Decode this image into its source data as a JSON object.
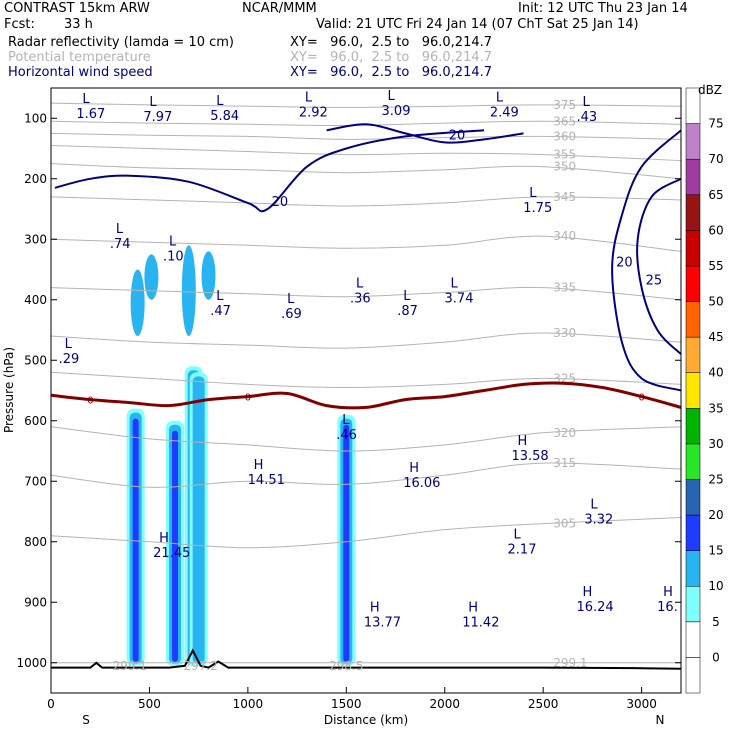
{
  "header": {
    "model": "CONTRAST 15km ARW",
    "org": "NCAR/MMM",
    "init": "Init: 12 UTC Thu 23 Jan 14",
    "fcst_label": "Fcst:",
    "fcst_value": "33 h",
    "valid": "Valid: 21 UTC Fri 24 Jan 14 (07 ChT Sat 25 Jan 14)",
    "fields": [
      {
        "name": "Radar reflectivity (lamda = 10 cm)",
        "xy": "XY=   96.0,  2.5 to   96.0,214.7"
      },
      {
        "name": "Potential temperature",
        "xy": "XY=   96.0,  2.5 to   96.0,214.7"
      },
      {
        "name": "Horizontal wind speed",
        "xy": "XY=   96.0,  2.5 to   96.0,214.7"
      }
    ]
  },
  "colors": {
    "theta": "#b4b4b4",
    "wind": "#000080",
    "freezing": "#800000",
    "terrain": "#000000"
  },
  "chart_data": {
    "type": "cross-section",
    "xlabel": "Distance (km)",
    "ylabel": "Pressure (hPa)",
    "xlim": [
      0,
      3200
    ],
    "ylim": [
      1050,
      50
    ],
    "x_ticks": [
      0,
      500,
      1000,
      1500,
      2000,
      2500,
      3000
    ],
    "y_ticks": [
      100,
      200,
      300,
      400,
      500,
      600,
      700,
      800,
      900,
      1000
    ],
    "ends": {
      "left": "S",
      "right": "N"
    },
    "colorbar": {
      "unit": "dBZ",
      "levels": [
        0,
        5,
        10,
        15,
        20,
        25,
        30,
        35,
        40,
        45,
        50,
        55,
        60,
        65,
        70,
        75
      ],
      "colors": [
        "#ffffff",
        "#ffffff",
        "#80ffff",
        "#28b4f0",
        "#1e3cff",
        "#2864b4",
        "#28e628",
        "#00b400",
        "#ffe600",
        "#ffaa32",
        "#ff6400",
        "#ff0000",
        "#c80000",
        "#961414",
        "#a03ca0",
        "#be82c8",
        "#ffffff"
      ]
    },
    "reflectivity_columns": [
      {
        "x": 430,
        "p_top": 580,
        "p_bot": 1005,
        "dbz": 15
      },
      {
        "x": 630,
        "p_top": 600,
        "p_bot": 1005,
        "dbz": 15
      },
      {
        "x": 725,
        "p_top": 510,
        "p_bot": 1005,
        "dbz": 20
      },
      {
        "x": 750,
        "p_top": 520,
        "p_bot": 1005,
        "dbz": 10
      },
      {
        "x": 1500,
        "p_top": 590,
        "p_bot": 1005,
        "dbz": 15
      }
    ],
    "reflectivity_blobs": [
      {
        "x": 440,
        "p_top": 350,
        "p_bot": 460,
        "dbz": 10
      },
      {
        "x": 510,
        "p_top": 325,
        "p_bot": 400,
        "dbz": 10
      },
      {
        "x": 700,
        "p_top": 310,
        "p_bot": 460,
        "dbz": 10
      },
      {
        "x": 800,
        "p_top": 320,
        "p_bot": 400,
        "dbz": 10
      }
    ],
    "freezing_level": {
      "label": "0",
      "x": [
        0,
        200,
        400,
        600,
        800,
        1000,
        1200,
        1400,
        1600,
        1800,
        2000,
        2200,
        2400,
        2600,
        2800,
        3000,
        3200
      ],
      "p": [
        558,
        565,
        570,
        575,
        565,
        560,
        555,
        575,
        578,
        565,
        560,
        550,
        540,
        538,
        545,
        560,
        578
      ]
    },
    "theta_contours": [
      {
        "label": "375",
        "p": [
          75,
          78,
          80,
          82,
          80,
          78,
          80
        ]
      },
      {
        "label": "365",
        "p": [
          105,
          108,
          110,
          112,
          108,
          105,
          110
        ]
      },
      {
        "label": "360",
        "p": [
          125,
          128,
          130,
          135,
          132,
          130,
          135
        ]
      },
      {
        "label": "355",
        "p": [
          145,
          150,
          155,
          160,
          158,
          160,
          170
        ]
      },
      {
        "label": "350",
        "p": [
          175,
          182,
          185,
          190,
          185,
          180,
          200
        ]
      },
      {
        "label": "345",
        "p": [
          230,
          235,
          240,
          245,
          240,
          230,
          235
        ]
      },
      {
        "label": "340",
        "p": [
          300,
          305,
          310,
          315,
          310,
          295,
          320
        ]
      },
      {
        "label": "335",
        "p": [
          380,
          385,
          390,
          395,
          388,
          380,
          400
        ]
      },
      {
        "label": "330",
        "p": [
          460,
          470,
          475,
          480,
          470,
          455,
          470
        ]
      },
      {
        "label": "325",
        "p": [
          520,
          530,
          540,
          545,
          540,
          530,
          540
        ]
      },
      {
        "label": "320",
        "p": [
          610,
          630,
          640,
          650,
          640,
          620,
          610
        ]
      },
      {
        "label": "315",
        "p": [
          690,
          710,
          700,
          705,
          690,
          670,
          680
        ]
      },
      {
        "label": "305",
        "p": [
          790,
          800,
          810,
          800,
          780,
          770,
          760
        ]
      },
      {
        "label": "299.1",
        "p": [
          1000,
          1000,
          1000,
          1000,
          1000,
          1000,
          1000
        ]
      }
    ],
    "theta_x": [
      0,
      500,
      1000,
      1500,
      2000,
      2500,
      3200
    ],
    "wind_contours": [
      {
        "label": "20",
        "x": [
          20,
          200,
          400,
          700,
          1000,
          1100,
          1300,
          1500,
          1800,
          2200
        ],
        "p": [
          215,
          200,
          195,
          205,
          240,
          250,
          180,
          150,
          130,
          120
        ]
      },
      {
        "label": "20",
        "x": [
          1400,
          1600,
          1800,
          2000,
          2200,
          2400
        ],
        "p": [
          120,
          110,
          125,
          140,
          135,
          125
        ]
      },
      {
        "label": "25",
        "x": [
          3200,
          3050,
          2980,
          3000,
          3080,
          3200
        ],
        "p": [
          200,
          230,
          300,
          380,
          450,
          490
        ]
      },
      {
        "label": "20",
        "x": [
          3200,
          3000,
          2900,
          2850,
          2900,
          3000,
          3200
        ],
        "p": [
          120,
          180,
          260,
          350,
          470,
          530,
          550
        ]
      }
    ],
    "extrema": [
      {
        "kind": "L",
        "value": "1.67",
        "x": 200,
        "p": 75
      },
      {
        "kind": "L",
        "value": "7.97",
        "x": 540,
        "p": 80
      },
      {
        "kind": "L",
        "value": "5.84",
        "x": 880,
        "p": 78
      },
      {
        "kind": "L",
        "value": "2.92",
        "x": 1330,
        "p": 72
      },
      {
        "kind": "L",
        "value": "3.09",
        "x": 1750,
        "p": 70
      },
      {
        "kind": "L",
        "value": "2.49",
        "x": 2300,
        "p": 72
      },
      {
        "kind": "L",
        "value": ".43",
        "x": 2740,
        "p": 80
      },
      {
        "kind": "L",
        "value": "1.75",
        "x": 2470,
        "p": 230
      },
      {
        "kind": "L",
        "value": ".74",
        "x": 370,
        "p": 290
      },
      {
        "kind": "L",
        "value": ".10",
        "x": 640,
        "p": 310
      },
      {
        "kind": "L",
        "value": ".47",
        "x": 880,
        "p": 400
      },
      {
        "kind": "L",
        "value": ".69",
        "x": 1240,
        "p": 405
      },
      {
        "kind": "L",
        "value": ".36",
        "x": 1590,
        "p": 380
      },
      {
        "kind": "L",
        "value": ".87",
        "x": 1830,
        "p": 400
      },
      {
        "kind": "L",
        "value": "3.74",
        "x": 2070,
        "p": 380
      },
      {
        "kind": "L",
        "value": ".29",
        "x": 110,
        "p": 480
      },
      {
        "kind": "L",
        "value": ".46",
        "x": 1520,
        "p": 605
      },
      {
        "kind": "H",
        "value": "13.58",
        "x": 2410,
        "p": 640
      },
      {
        "kind": "H",
        "value": "14.51",
        "x": 1070,
        "p": 680
      },
      {
        "kind": "H",
        "value": "16.06",
        "x": 1860,
        "p": 685
      },
      {
        "kind": "L",
        "value": "3.32",
        "x": 2780,
        "p": 745
      },
      {
        "kind": "L",
        "value": "2.17",
        "x": 2390,
        "p": 795
      },
      {
        "kind": "H",
        "value": "21.45",
        "x": 590,
        "p": 800
      },
      {
        "kind": "H",
        "value": "16.24",
        "x": 2740,
        "p": 890
      },
      {
        "kind": "H",
        "value": "16.",
        "x": 3150,
        "p": 890
      },
      {
        "kind": "H",
        "value": "13.77",
        "x": 1660,
        "p": 915
      },
      {
        "kind": "H",
        "value": "11.42",
        "x": 2160,
        "p": 915
      }
    ],
    "terrain": {
      "x": [
        0,
        200,
        230,
        260,
        600,
        680,
        720,
        760,
        800,
        850,
        900,
        1200,
        1500,
        2000,
        2500,
        3000,
        3200
      ],
      "p": [
        1008,
        1008,
        1000,
        1008,
        1008,
        1005,
        980,
        1005,
        1008,
        998,
        1008,
        1008,
        1008,
        1008,
        1008,
        1009,
        1010
      ]
    },
    "surface_theta_labels": [
      {
        "text": "299.1",
        "x": 400
      },
      {
        "text": "297.2",
        "x": 760
      },
      {
        "text": "298.5",
        "x": 1500
      }
    ]
  }
}
